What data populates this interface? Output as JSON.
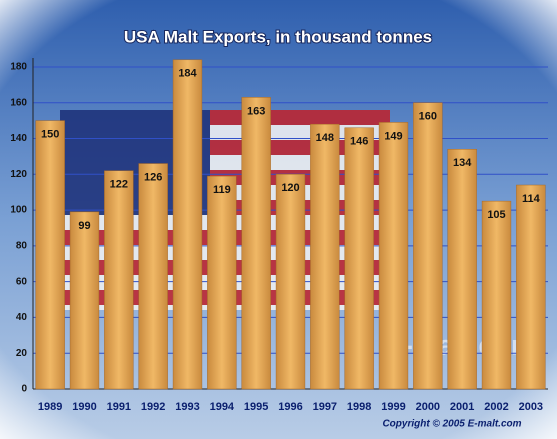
{
  "chart_data": {
    "type": "bar",
    "title": "USA Malt Exports, in thousand tonnes",
    "categories": [
      "1989",
      "1990",
      "1991",
      "1992",
      "1993",
      "1994",
      "1995",
      "1996",
      "1997",
      "1998",
      "1999",
      "2000",
      "2001",
      "2002",
      "2003"
    ],
    "values": [
      150,
      99,
      122,
      126,
      184,
      119,
      163,
      120,
      148,
      146,
      149,
      160,
      134,
      105,
      114
    ],
    "color": "#e0a050",
    "ylim": [
      0,
      185
    ],
    "yticks": [
      0,
      20,
      40,
      60,
      80,
      100,
      120,
      140,
      160,
      180
    ],
    "grid": true,
    "watermark": "e-malt.com",
    "copyright": "Copyright © 2005  E-malt.com"
  }
}
